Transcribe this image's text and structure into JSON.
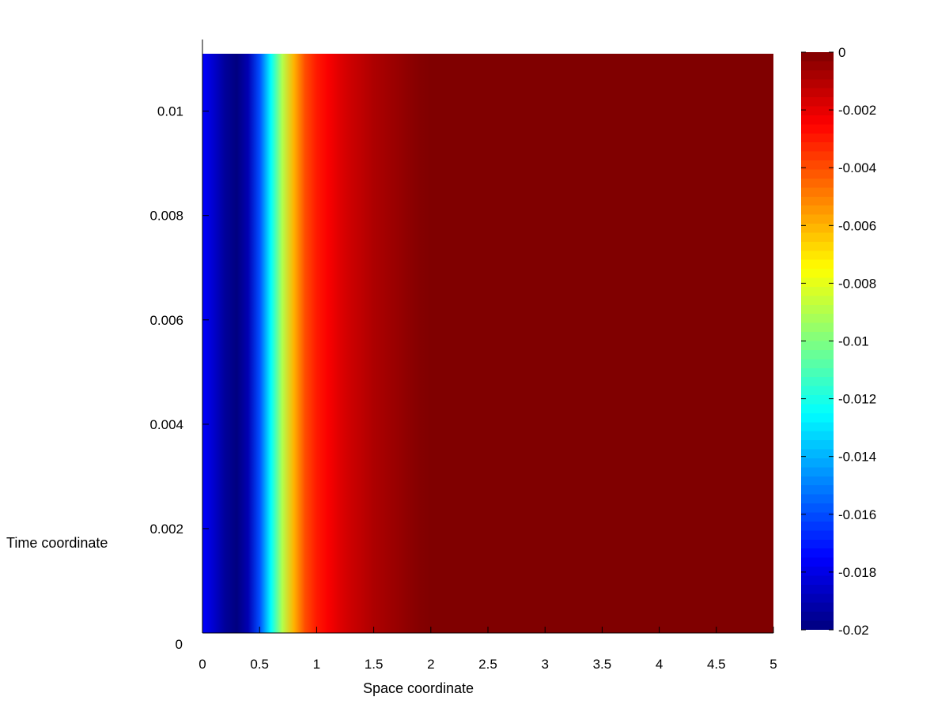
{
  "chart_data": {
    "type": "heatmap",
    "title": "",
    "xlabel": "Space coordinate",
    "ylabel": "Time coordinate",
    "xlim": [
      0,
      5
    ],
    "ylim": [
      0,
      0.0111
    ],
    "x_ticks": [
      0,
      0.5,
      1,
      1.5,
      2,
      2.5,
      3,
      3.5,
      4,
      4.5,
      5
    ],
    "x_tick_labels": [
      "0",
      "0.5",
      "1",
      "1.5",
      "2",
      "2.5",
      "3",
      "3.5",
      "4",
      "4.5",
      "5"
    ],
    "y_ticks": [
      0,
      0.002,
      0.004,
      0.006,
      0.008,
      0.01
    ],
    "y_tick_labels": [
      "0",
      "0.002",
      "0.004",
      "0.006",
      "0.008",
      "0.01"
    ],
    "colorbar": {
      "colormap": "jet",
      "clim": [
        -0.02,
        0
      ],
      "ticks": [
        0,
        -0.002,
        -0.004,
        -0.006,
        -0.008,
        -0.01,
        -0.012,
        -0.014,
        -0.016,
        -0.018,
        -0.02
      ],
      "tick_labels": [
        "0",
        "-0.002",
        "-0.004",
        "-0.006",
        "-0.008",
        "-0.01",
        "-0.012",
        "-0.014",
        "-0.016",
        "-0.018",
        "-0.02"
      ]
    },
    "field_profile": {
      "description_x": [
        0,
        0.1,
        0.2,
        0.3,
        0.4,
        0.5,
        0.6,
        0.7,
        0.8,
        0.9,
        1.0,
        1.1,
        1.2,
        1.3,
        1.4,
        1.5,
        1.6,
        1.7,
        1.8,
        1.9,
        2.0,
        5.0
      ],
      "values": [
        -0.0175,
        -0.0185,
        -0.0195,
        -0.02,
        -0.019,
        -0.016,
        -0.0125,
        -0.009,
        -0.006,
        -0.004,
        -0.003,
        -0.0024,
        -0.0019,
        -0.0015,
        -0.0012,
        -0.0009,
        -0.0007,
        -0.0005,
        -0.0003,
        -0.0001,
        0.0,
        0.0
      ]
    }
  }
}
